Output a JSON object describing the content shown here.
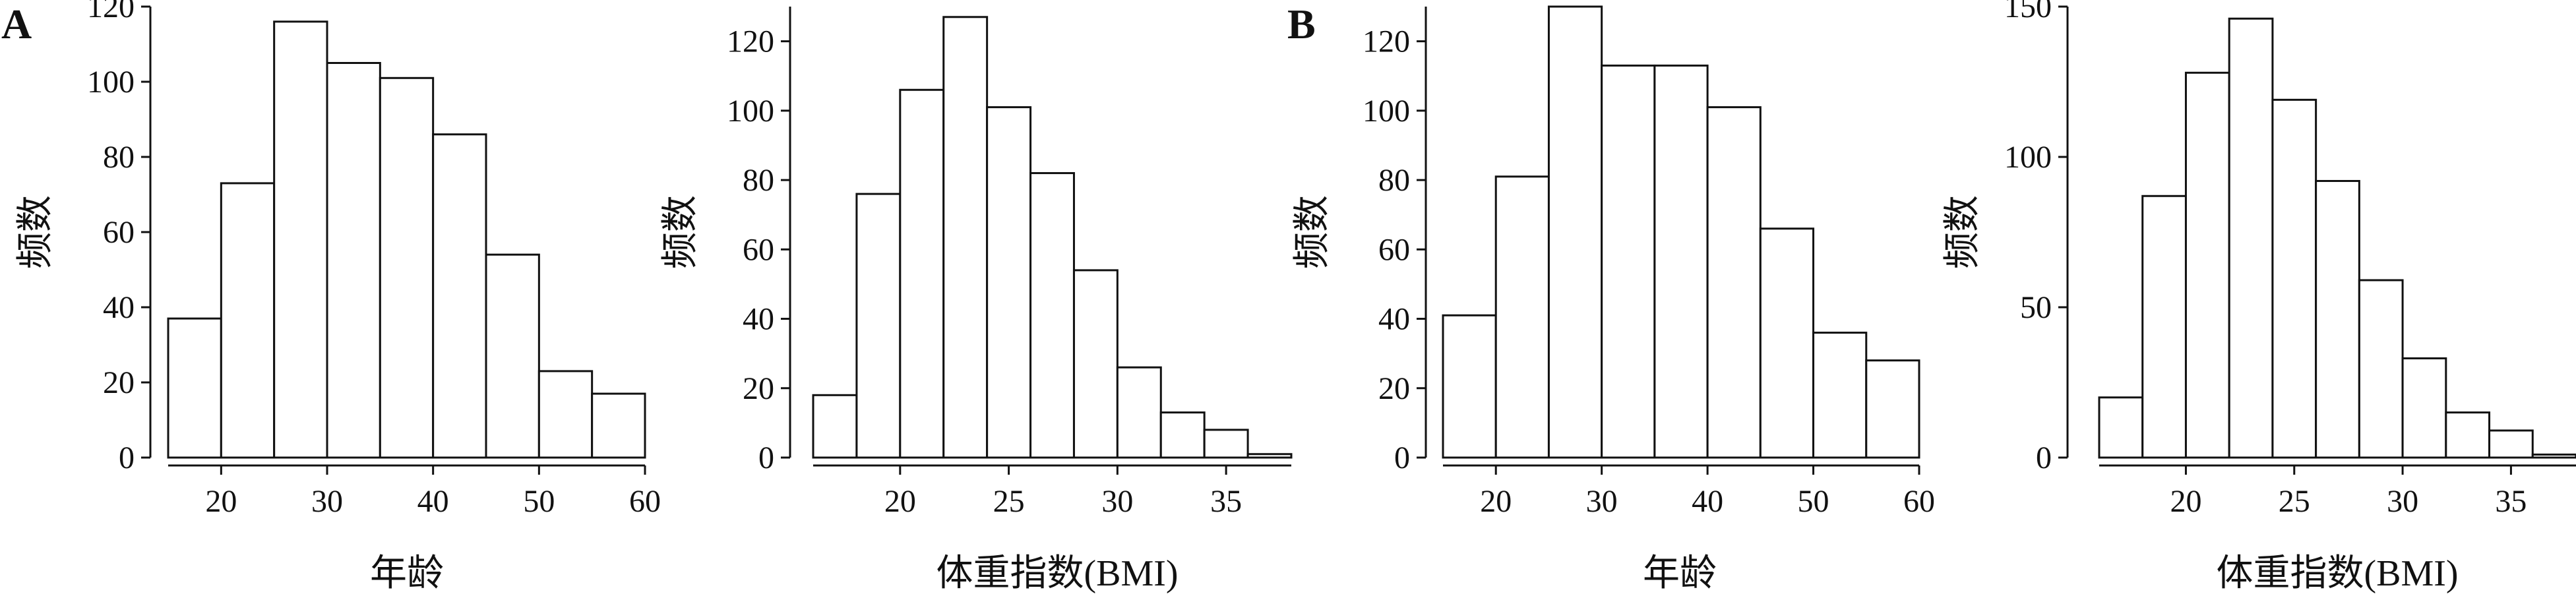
{
  "panel_labels": [
    "A",
    "B"
  ],
  "chart_data": [
    {
      "type": "bar",
      "panel": "A",
      "xlabel": "年龄",
      "ylabel": "频数",
      "bin_edges": [
        15,
        20,
        25,
        30,
        35,
        40,
        45,
        50,
        55,
        60
      ],
      "values": [
        37,
        73,
        116,
        105,
        101,
        86,
        54,
        23,
        17
      ],
      "xlim": [
        15,
        60
      ],
      "ylim": [
        0,
        120
      ],
      "xticks": [
        20,
        30,
        40,
        50,
        60
      ],
      "yticks": [
        0,
        20,
        40,
        60,
        80,
        100,
        120
      ]
    },
    {
      "type": "bar",
      "panel": "A",
      "xlabel": "体重指数(BMI)",
      "ylabel": "频数",
      "bin_edges": [
        16,
        18,
        20,
        22,
        24,
        26,
        28,
        30,
        32,
        34,
        36,
        38
      ],
      "values": [
        18,
        76,
        106,
        127,
        101,
        82,
        54,
        26,
        13,
        8,
        1
      ],
      "xlim": [
        16,
        38
      ],
      "ylim": [
        0,
        130
      ],
      "xticks": [
        20,
        25,
        30,
        35
      ],
      "yticks": [
        0,
        20,
        40,
        60,
        80,
        100,
        120
      ]
    },
    {
      "type": "bar",
      "panel": "B",
      "xlabel": "年龄",
      "ylabel": "频数",
      "bin_edges": [
        15,
        20,
        25,
        30,
        35,
        40,
        45,
        50,
        55,
        60
      ],
      "values": [
        41,
        81,
        130,
        113,
        113,
        101,
        66,
        36,
        28
      ],
      "xlim": [
        15,
        60
      ],
      "ylim": [
        0,
        130
      ],
      "xticks": [
        20,
        30,
        40,
        50,
        60
      ],
      "yticks": [
        0,
        20,
        40,
        60,
        80,
        100,
        120
      ]
    },
    {
      "type": "bar",
      "panel": "B",
      "xlabel": "体重指数(BMI)",
      "ylabel": "频数",
      "bin_edges": [
        16,
        18,
        20,
        22,
        24,
        26,
        28,
        30,
        32,
        34,
        36,
        38
      ],
      "values": [
        20,
        87,
        128,
        146,
        119,
        92,
        59,
        33,
        15,
        9,
        1
      ],
      "xlim": [
        16,
        38
      ],
      "ylim": [
        0,
        150
      ],
      "xticks": [
        20,
        25,
        30,
        35
      ],
      "yticks": [
        0,
        50,
        100,
        150
      ]
    }
  ]
}
